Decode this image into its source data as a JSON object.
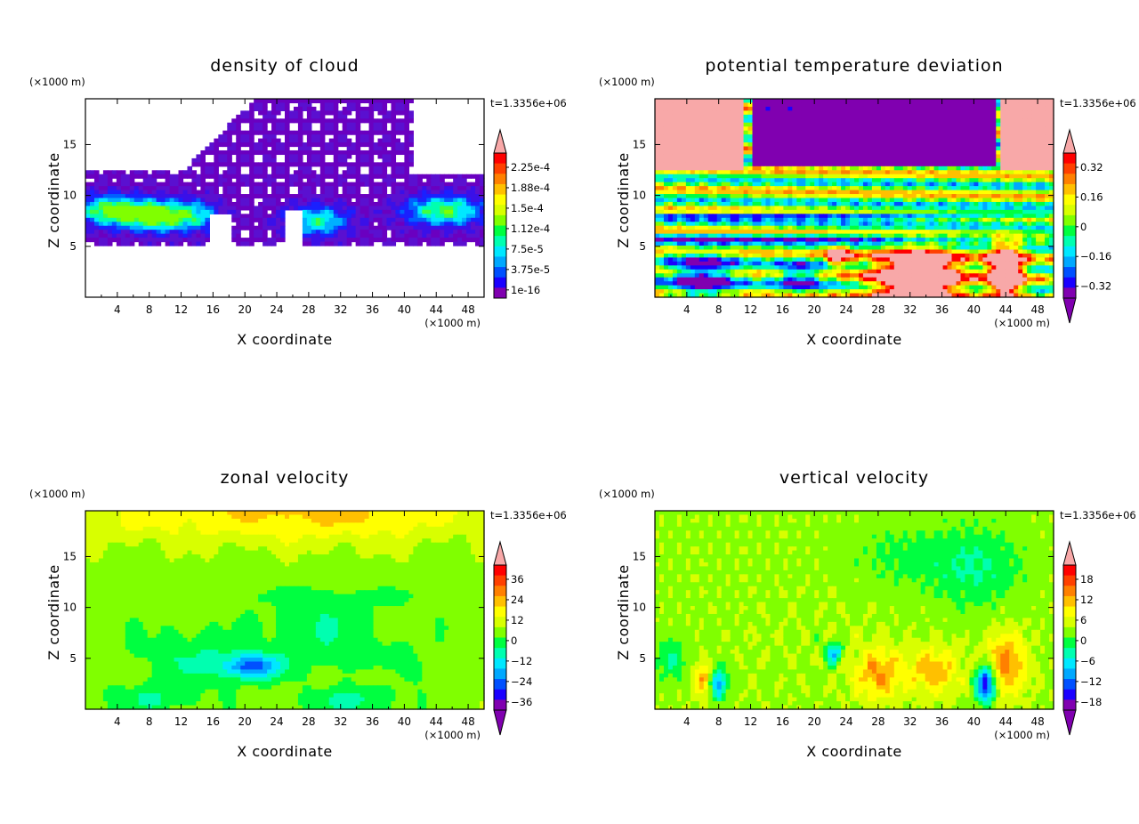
{
  "figure": {
    "panels": [
      {
        "title": "density of cloud",
        "time_label": "t=1.3356e+06",
        "xlabel": "X coordinate",
        "ylabel": "Z coordinate",
        "x_unit": "(×1000 m)",
        "y_unit": "(×1000 m)",
        "x_ticks": [
          "4",
          "8",
          "12",
          "16",
          "20",
          "24",
          "28",
          "32",
          "36",
          "40",
          "44",
          "48"
        ],
        "y_ticks": [
          "5",
          "10",
          "15"
        ],
        "colorbar_labels": [
          "2.25e-4",
          "1.88e-4",
          "1.5e-4",
          "1.12e-4",
          "7.5e-5",
          "3.75e-5",
          "1e-16"
        ],
        "colorbar_bottom_arrow": false
      },
      {
        "title": "potential temperature deviation",
        "time_label": "t=1.3356e+06",
        "xlabel": "X coordinate",
        "ylabel": "Z coordinate",
        "x_unit": "(×1000 m)",
        "y_unit": "(×1000 m)",
        "x_ticks": [
          "4",
          "8",
          "12",
          "16",
          "20",
          "24",
          "28",
          "32",
          "36",
          "40",
          "44",
          "48"
        ],
        "y_ticks": [
          "5",
          "10",
          "15"
        ],
        "colorbar_labels": [
          "0.32",
          "0.16",
          "0",
          "−0.16",
          "−0.32"
        ],
        "colorbar_bottom_arrow": true
      },
      {
        "title": "zonal velocity",
        "time_label": "t=1.3356e+06",
        "xlabel": "X coordinate",
        "ylabel": "Z coordinate",
        "x_unit": "(×1000 m)",
        "y_unit": "(×1000 m)",
        "x_ticks": [
          "4",
          "8",
          "12",
          "16",
          "20",
          "24",
          "28",
          "32",
          "36",
          "40",
          "44",
          "48"
        ],
        "y_ticks": [
          "5",
          "10",
          "15"
        ],
        "colorbar_labels": [
          "36",
          "24",
          "12",
          "0",
          "−12",
          "−24",
          "−36"
        ],
        "colorbar_bottom_arrow": true
      },
      {
        "title": "vertical velocity",
        "time_label": "t=1.3356e+06",
        "xlabel": "X coordinate",
        "ylabel": "Z coordinate",
        "x_unit": "(×1000 m)",
        "y_unit": "(×1000 m)",
        "x_ticks": [
          "4",
          "8",
          "12",
          "16",
          "20",
          "24",
          "28",
          "32",
          "36",
          "40",
          "44",
          "48"
        ],
        "y_ticks": [
          "5",
          "10",
          "15"
        ],
        "colorbar_labels": [
          "18",
          "12",
          "6",
          "0",
          "−6",
          "−12",
          "−18"
        ],
        "colorbar_bottom_arrow": true
      }
    ]
  },
  "chart_data": [
    {
      "type": "heatmap",
      "title": "density of cloud",
      "xlabel": "X coordinate (×1000 m)",
      "ylabel": "Z coordinate (×1000 m)",
      "xlim": [
        0,
        50
      ],
      "ylim": [
        0,
        19.5
      ],
      "x_ticks": [
        4,
        8,
        12,
        16,
        20,
        24,
        28,
        32,
        36,
        40,
        44,
        48
      ],
      "y_ticks": [
        5,
        10,
        15
      ],
      "colorbar_levels": [
        1e-16,
        3.75e-05,
        7.5e-05,
        0.000112,
        0.00015,
        0.000188,
        0.000225
      ],
      "colormap": [
        "#6a00c0",
        "#1a00ff",
        "#0050ff",
        "#00b0ff",
        "#00ffe0",
        "#00ff60",
        "#80ff00",
        "#ffff00",
        "#ffb000",
        "#ff6000",
        "#ff0000",
        "#f8a8a8"
      ],
      "time": "t=1.3356e+06",
      "description_of_field": "cloud layer between z≈5 and z≈12, anvil up to z≈19.5 between x≈20 and x≈42; maxima near z≈7-9"
    },
    {
      "type": "heatmap",
      "title": "potential temperature deviation",
      "xlabel": "X coordinate (×1000 m)",
      "ylabel": "Z coordinate (×1000 m)",
      "xlim": [
        0,
        50
      ],
      "ylim": [
        0,
        19.5
      ],
      "x_ticks": [
        4,
        8,
        12,
        16,
        20,
        24,
        28,
        32,
        36,
        40,
        44,
        48
      ],
      "y_ticks": [
        5,
        10,
        15
      ],
      "colorbar_levels": [
        -0.32,
        -0.16,
        0,
        0.16,
        0.32
      ],
      "colormap": [
        "#8000b0",
        "#1a00ff",
        "#0050ff",
        "#00b0ff",
        "#00ffe0",
        "#00ff60",
        "#80ff00",
        "#ffff00",
        "#ffb000",
        "#ff6000",
        "#ff0000",
        "#f8a8a8"
      ],
      "time": "t=1.3356e+06"
    },
    {
      "type": "heatmap",
      "title": "zonal velocity",
      "xlabel": "X coordinate (×1000 m)",
      "ylabel": "Z coordinate (×1000 m)",
      "xlim": [
        0,
        50
      ],
      "ylim": [
        0,
        19.5
      ],
      "x_ticks": [
        4,
        8,
        12,
        16,
        20,
        24,
        28,
        32,
        36,
        40,
        44,
        48
      ],
      "y_ticks": [
        5,
        10,
        15
      ],
      "colorbar_levels": [
        -36,
        -24,
        -12,
        0,
        12,
        24,
        36
      ],
      "colormap": [
        "#8000b0",
        "#1a00ff",
        "#0050ff",
        "#00b0ff",
        "#00ffe0",
        "#00ff60",
        "#80ff00",
        "#ffff00",
        "#ffb000",
        "#ff6000",
        "#ff0000",
        "#f8a8a8"
      ],
      "time": "t=1.3356e+06"
    },
    {
      "type": "heatmap",
      "title": "vertical velocity",
      "xlabel": "X coordinate (×1000 m)",
      "ylabel": "Z coordinate (×1000 m)",
      "xlim": [
        0,
        50
      ],
      "ylim": [
        0,
        19.5
      ],
      "x_ticks": [
        4,
        8,
        12,
        16,
        20,
        24,
        28,
        32,
        36,
        40,
        44,
        48
      ],
      "y_ticks": [
        5,
        10,
        15
      ],
      "colorbar_levels": [
        -18,
        -12,
        -6,
        0,
        6,
        12,
        18
      ],
      "colormap": [
        "#8000b0",
        "#1a00ff",
        "#0050ff",
        "#00b0ff",
        "#00ffe0",
        "#00ff60",
        "#80ff00",
        "#ffff00",
        "#ffb000",
        "#ff6000",
        "#ff0000",
        "#f8a8a8"
      ],
      "time": "t=1.3356e+06"
    }
  ]
}
